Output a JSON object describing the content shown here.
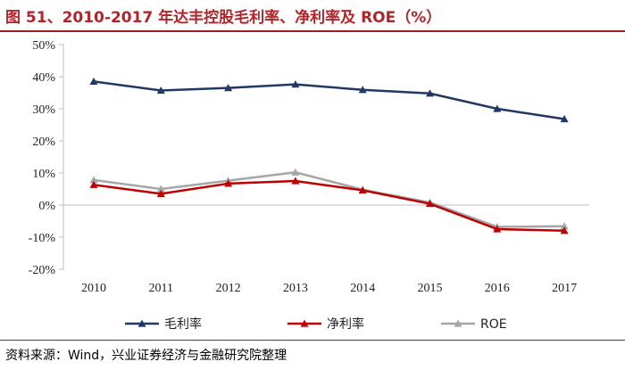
{
  "title": "图 51、2010-2017 年达丰控股毛利率、净利率及 ROE（%）",
  "source": "资料来源：Wind，兴业证券经济与金融研究院整理",
  "chart_data": {
    "type": "line",
    "title": "图 51、2010-2017 年达丰控股毛利率、净利率及 ROE（%）",
    "categories": [
      "2010",
      "2011",
      "2012",
      "2013",
      "2014",
      "2015",
      "2016",
      "2017"
    ],
    "ylim": [
      -20,
      50
    ],
    "yticks": [
      -20,
      -10,
      0,
      10,
      20,
      30,
      40,
      50
    ],
    "ytick_labels": [
      "-20%",
      "-10%",
      "0%",
      "10%",
      "20%",
      "30%",
      "40%",
      "50%"
    ],
    "grid": false,
    "legend_position": "bottom",
    "series": [
      {
        "name": "毛利率",
        "color": "#1f3864",
        "marker": "triangle",
        "values": [
          38.5,
          35.7,
          36.5,
          37.6,
          35.9,
          34.8,
          30.0,
          26.8
        ]
      },
      {
        "name": "净利率",
        "color": "#c00000",
        "marker": "triangle",
        "values": [
          6.3,
          3.5,
          6.7,
          7.5,
          4.6,
          0.4,
          -7.5,
          -8.0
        ]
      },
      {
        "name": "ROE",
        "color": "#a6a6a6",
        "marker": "triangle",
        "values": [
          7.8,
          5.0,
          7.6,
          10.2,
          4.8,
          0.8,
          -6.8,
          -6.6
        ]
      }
    ]
  }
}
